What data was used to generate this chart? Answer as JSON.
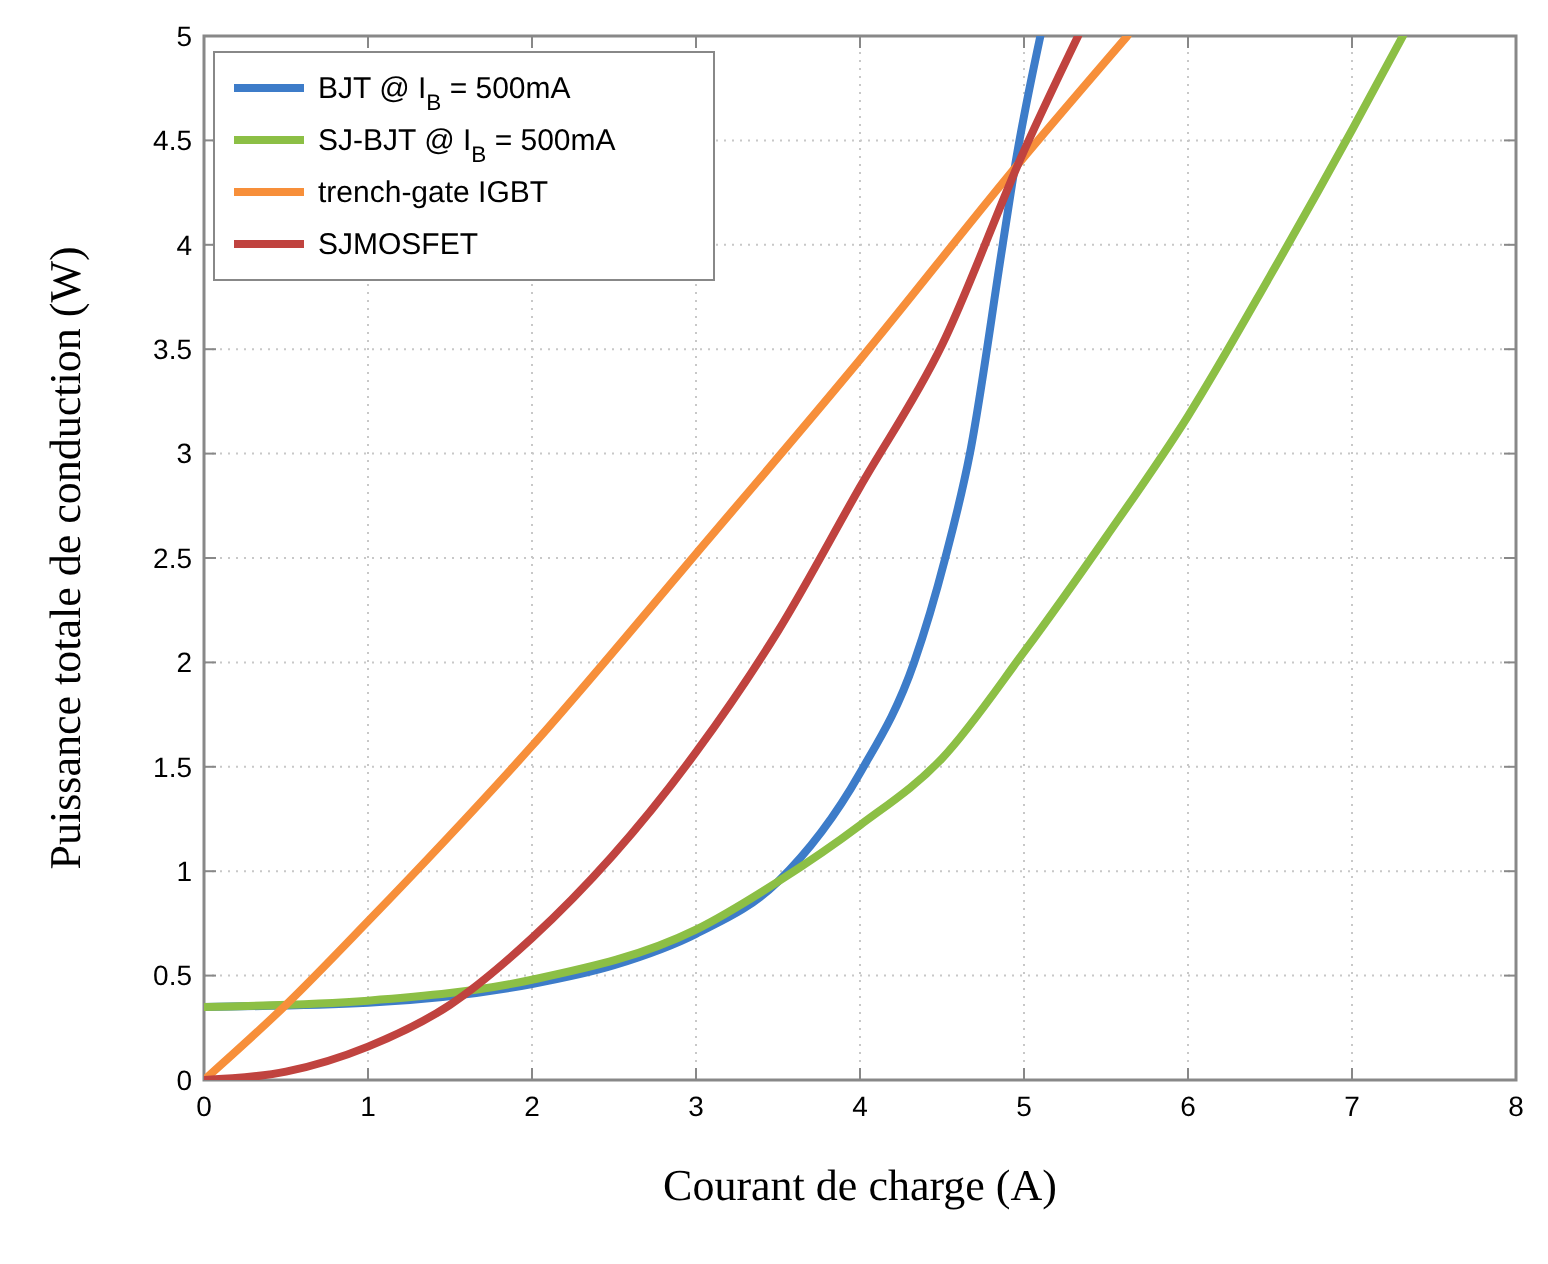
{
  "chart_data": {
    "type": "line",
    "xlabel": "Courant de charge (A)",
    "ylabel": "Puissance totale de conduction (W)",
    "xlim": [
      0,
      8
    ],
    "xticks": [
      0,
      1,
      2,
      3,
      4,
      5,
      6,
      7,
      8
    ],
    "ylim": [
      0,
      5
    ],
    "yticks": [
      0,
      0.5,
      1,
      1.5,
      2,
      2.5,
      3,
      3.5,
      4,
      4.5,
      5
    ],
    "grid": true,
    "legend": "top left",
    "line_style": "solid",
    "marker": "none",
    "series": [
      {
        "name": "BJT @ I$_{B}$ = 500mA",
        "color": "#3d7cc9",
        "x": [
          0,
          1,
          2,
          2.5,
          3,
          3.5,
          4,
          4.33,
          4.52,
          4.67,
          4.87,
          4.95,
          5.1
        ],
        "values": [
          0.35,
          0.37,
          0.46,
          0.55,
          0.7,
          0.95,
          1.47,
          2,
          2.5,
          3,
          4,
          4.4,
          5
        ]
      },
      {
        "name": "SJ-BJT @ I$_{B}$ = 500mA",
        "color": "#8cbf45",
        "x": [
          0,
          1,
          2,
          3,
          3.5,
          4,
          4.5,
          5,
          5.5,
          6,
          6.5,
          7,
          7.31
        ],
        "values": [
          0.35,
          0.38,
          0.48,
          0.72,
          0.95,
          1.22,
          1.54,
          2.05,
          2.6,
          3.18,
          3.85,
          4.55,
          5
        ]
      },
      {
        "name": "trench-gate IGBT",
        "color": "#f78f3a",
        "x": [
          0,
          0.5,
          1,
          2,
          3,
          4,
          5,
          5.63
        ],
        "values": [
          0,
          0.36,
          0.76,
          1.6,
          2.52,
          3.45,
          4.42,
          5
        ]
      },
      {
        "name": "SJMOSFET",
        "color": "#c0433f",
        "x": [
          0,
          0.5,
          1,
          1.5,
          2,
          3,
          3.5,
          4,
          4.5,
          5,
          5.33
        ],
        "values": [
          0,
          0.04,
          0.16,
          0.36,
          0.68,
          1.57,
          2.15,
          2.84,
          3.52,
          4.45,
          5
        ]
      }
    ]
  }
}
